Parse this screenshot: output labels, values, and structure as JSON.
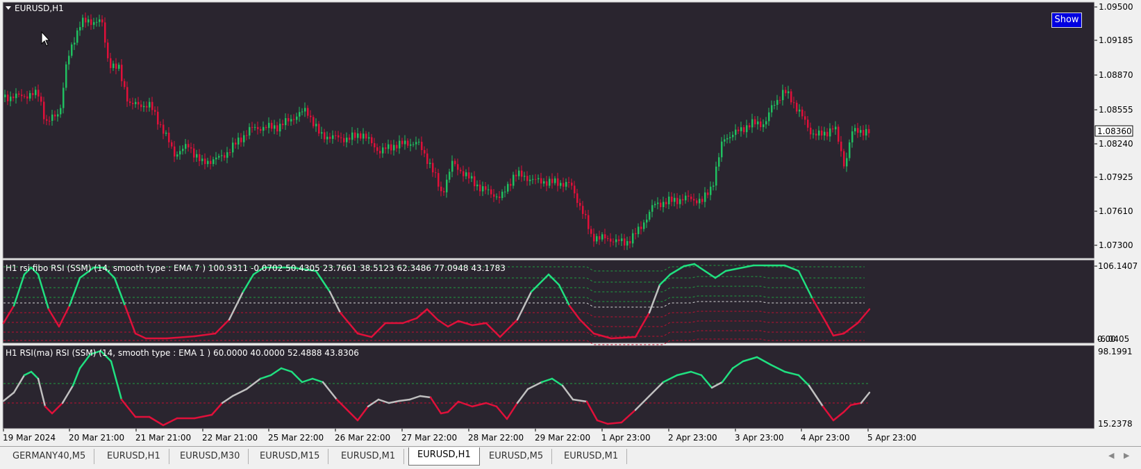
{
  "main": {
    "title": "EURUSD,H1",
    "show_button": "Show",
    "price_ticks": [
      "1.09500",
      "1.09185",
      "1.08870",
      "1.08555",
      "1.08240",
      "1.07925",
      "1.07610",
      "1.07300"
    ],
    "current_price": "1.08360",
    "colors": {
      "bull": "#20c060",
      "bear": "#e0103a",
      "background": "#2a252f"
    }
  },
  "indicator1": {
    "label": "H1 rsi fibo RSI (SSM) (14, smooth type : EMA  7 ) 100.9311 -0.0702 50.4305 23.7661 38.5123 62.3486 77.0948 43.1783",
    "scale_top": "106.1407",
    "scale_bottom_a": "-6.0405",
    "scale_bottom_b": "0.00",
    "line_colors": {
      "up": "#20e080",
      "neutral": "#c0c0c0",
      "down": "#e0103a"
    }
  },
  "indicator2": {
    "label": "H1 RSI(ma) RSI (SSM) (14, smooth type : EMA  1 ) 60.0000 40.0000 52.4888 43.8306",
    "scale_top": "98.1991",
    "scale_bottom": "15.2378"
  },
  "time_axis": [
    "19 Mar 2024",
    "20 Mar 21:00",
    "21 Mar 21:00",
    "22 Mar 21:00",
    "25 Mar 22:00",
    "26 Mar 22:00",
    "27 Mar 22:00",
    "28 Mar 22:00",
    "29 Mar 22:00",
    "1 Apr 23:00",
    "2 Apr 23:00",
    "3 Apr 23:00",
    "4 Apr 23:00",
    "5 Apr 23:00"
  ],
  "tabs": [
    "GERMANY40,M5",
    "EURUSD,H1",
    "EURUSD,M30",
    "EURUSD,M15",
    "EURUSD,M1",
    "EURUSD,H1",
    "EURUSD,M5",
    "EURUSD,M1"
  ],
  "active_tab": 5,
  "tab_scroll": {
    "left_icon": "triangle-left-icon",
    "right_icon": "triangle-right-icon"
  }
}
